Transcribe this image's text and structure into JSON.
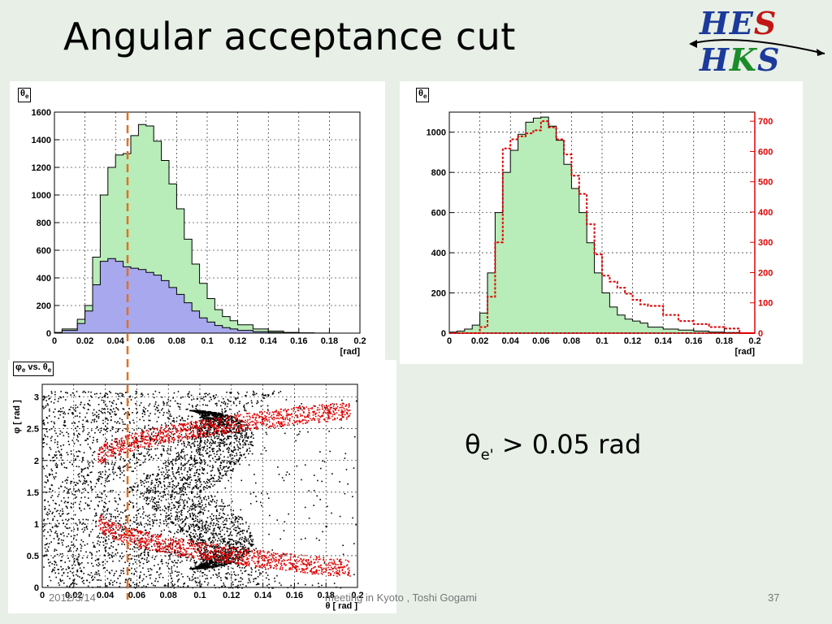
{
  "slide": {
    "title": "Angular acceptance cut",
    "condition": {
      "symbol": "θ",
      "subscript": "e'",
      "rest": " > 0.05 rad"
    },
    "footer_date": "2012/3/14",
    "footer_center": "meeting in Kyoto , Toshi Gogami",
    "page_number": "37",
    "logo": {
      "part1": "HE",
      "part2": "S",
      "part3": " H",
      "part4": "K",
      "part5": "S"
    },
    "colors": {
      "background": "#e7efe7",
      "green_fill": "#b8ecb8",
      "blue_fill": "#a8a8ee",
      "red_series": "#e00000",
      "cut_line": "#e07020"
    }
  },
  "chart_data": [
    {
      "type": "bar",
      "frame_label": "θe",
      "xlabel": "[rad]",
      "ylabel": "",
      "xlim": [
        0,
        0.2
      ],
      "ylim": [
        0,
        1600
      ],
      "x_ticks": [
        "0",
        "0.02",
        "0.04",
        "0.06",
        "0.08",
        "0.1",
        "0.12",
        "0.14",
        "0.16",
        "0.18",
        "0.2"
      ],
      "y_ticks": [
        "0",
        "200",
        "400",
        "600",
        "800",
        "1000",
        "1200",
        "1400",
        "1600"
      ],
      "grid": true,
      "cut_x": 0.05,
      "series": [
        {
          "x": [
            0.005,
            0.015,
            0.02,
            0.025,
            0.03,
            0.035,
            0.04,
            0.045,
            0.05,
            0.055,
            0.06,
            0.065,
            0.07,
            0.075,
            0.08,
            0.085,
            0.09,
            0.095,
            0.1,
            0.105,
            0.11,
            0.115,
            0.12,
            0.13,
            0.14,
            0.15,
            0.16,
            0.17,
            0.18,
            0.2
          ],
          "values": [
            5,
            30,
            100,
            200,
            550,
            1000,
            1200,
            1290,
            1300,
            1430,
            1510,
            1500,
            1390,
            1250,
            1080,
            900,
            680,
            500,
            360,
            250,
            170,
            120,
            90,
            60,
            30,
            15,
            5,
            2,
            1,
            0
          ]
        },
        {
          "x": [
            0.005,
            0.015,
            0.02,
            0.025,
            0.03,
            0.035,
            0.04,
            0.045,
            0.05,
            0.055,
            0.06,
            0.065,
            0.07,
            0.075,
            0.08,
            0.085,
            0.09,
            0.095,
            0.1,
            0.105,
            0.11,
            0.115,
            0.12,
            0.13,
            0.14,
            0.15,
            0.16,
            0.17,
            0.18,
            0.2
          ],
          "values": [
            3,
            20,
            70,
            160,
            350,
            520,
            540,
            520,
            480,
            470,
            460,
            440,
            420,
            380,
            330,
            280,
            220,
            160,
            110,
            80,
            55,
            40,
            30,
            20,
            10,
            5,
            2,
            1,
            0,
            0
          ]
        }
      ]
    },
    {
      "type": "bar",
      "frame_label": "θe",
      "xlabel": "[rad]",
      "ylabel": "",
      "xlim": [
        0,
        0.2
      ],
      "ylim": [
        0,
        1100
      ],
      "y2lim": [
        0,
        730
      ],
      "x_ticks": [
        "0",
        "0.02",
        "0.04",
        "0.06",
        "0.08",
        "0.1",
        "0.12",
        "0.14",
        "0.16",
        "0.18",
        "0.2"
      ],
      "y_ticks": [
        "0",
        "200",
        "400",
        "600",
        "800",
        "1000"
      ],
      "y2_ticks": [
        "0",
        "100",
        "200",
        "300",
        "400",
        "500",
        "600",
        "700"
      ],
      "grid": true,
      "series": [
        {
          "x": [
            0.005,
            0.01,
            0.015,
            0.02,
            0.025,
            0.03,
            0.035,
            0.04,
            0.045,
            0.05,
            0.055,
            0.06,
            0.065,
            0.07,
            0.075,
            0.08,
            0.085,
            0.09,
            0.095,
            0.1,
            0.105,
            0.11,
            0.115,
            0.12,
            0.125,
            0.13,
            0.14,
            0.15,
            0.16,
            0.17,
            0.18,
            0.19,
            0.2
          ],
          "values": [
            5,
            10,
            20,
            40,
            100,
            300,
            600,
            800,
            910,
            990,
            1050,
            1070,
            1075,
            1030,
            960,
            840,
            720,
            600,
            450,
            300,
            200,
            130,
            90,
            70,
            60,
            50,
            30,
            20,
            15,
            10,
            5,
            3,
            0
          ]
        },
        {
          "x": [
            0.005,
            0.01,
            0.015,
            0.02,
            0.025,
            0.03,
            0.035,
            0.04,
            0.045,
            0.05,
            0.055,
            0.06,
            0.065,
            0.07,
            0.075,
            0.08,
            0.085,
            0.09,
            0.095,
            0.1,
            0.105,
            0.11,
            0.115,
            0.12,
            0.125,
            0.13,
            0.14,
            0.15,
            0.16,
            0.17,
            0.18,
            0.19,
            0.2
          ],
          "values": [
            0,
            0,
            0,
            0,
            20,
            120,
            300,
            610,
            640,
            650,
            660,
            670,
            700,
            680,
            640,
            590,
            520,
            460,
            360,
            260,
            190,
            170,
            150,
            130,
            110,
            95,
            90,
            60,
            40,
            30,
            20,
            15,
            0
          ]
        }
      ]
    },
    {
      "type": "scatter",
      "frame_label": "φe vs. θe",
      "xlabel": "θ [ rad ]",
      "ylabel": "φ [ rad ]",
      "xlim": [
        0,
        0.2
      ],
      "ylim": [
        0,
        3.2
      ],
      "x_ticks": [
        "0",
        "0.02",
        "0.04",
        "0.06",
        "0.08",
        "0.1",
        "0.12",
        "0.14",
        "0.16",
        "0.18",
        "0.2"
      ],
      "y_ticks": [
        "0",
        "0.5",
        "1",
        "1.5",
        "2",
        "2.5",
        "3"
      ],
      "grid": true,
      "cut_x": 0.05,
      "series": [
        {
          "name": "",
          "color": "#000000"
        },
        {
          "name": "",
          "color": "#e00000"
        }
      ]
    }
  ]
}
